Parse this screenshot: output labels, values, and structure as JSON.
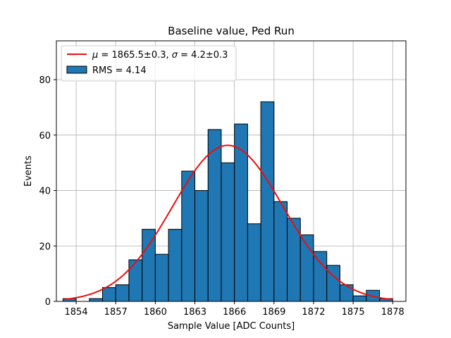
{
  "chart_data": {
    "type": "bar",
    "title": "Baseline value, Ped Run",
    "xlabel": "Sample Value [ADC Counts]",
    "ylabel": "Events",
    "xlim": [
      1852.5,
      1879
    ],
    "ylim": [
      0,
      94
    ],
    "xticks": [
      1854,
      1857,
      1860,
      1863,
      1866,
      1869,
      1872,
      1875,
      1878
    ],
    "yticks": [
      0,
      20,
      40,
      60,
      80
    ],
    "grid": true,
    "legend_position": "top-left",
    "histogram": {
      "name": "RMS = 4.14",
      "bin_width": 1,
      "bin_lefts": [
        1853,
        1854,
        1855,
        1856,
        1857,
        1858,
        1859,
        1860,
        1861,
        1862,
        1863,
        1864,
        1865,
        1866,
        1867,
        1868,
        1869,
        1870,
        1871,
        1872,
        1873,
        1874,
        1875,
        1876,
        1877
      ],
      "counts": [
        1,
        0,
        1,
        5,
        6,
        15,
        26,
        17,
        26,
        47,
        40,
        62,
        50,
        64,
        28,
        72,
        36,
        30,
        24,
        18,
        13,
        6,
        2,
        4,
        1
      ],
      "color": "#1f77b4",
      "edge_color": "#000000"
    },
    "fit": {
      "name": "μ = 1865.5±0.3, σ = 4.2±0.3",
      "type": "gaussian",
      "mu": 1865.5,
      "sigma": 4.2,
      "amplitude": 56.3,
      "x_range": [
        1853,
        1878
      ],
      "color": "#e8100f"
    }
  },
  "legend": {
    "fit_mu_sym": "μ",
    "fit_mu_val": " = 1865.5±0.3, ",
    "fit_sigma_sym": "σ",
    "fit_sigma_val": " = 4.2±0.3",
    "hist_label": "RMS = 4.14"
  }
}
